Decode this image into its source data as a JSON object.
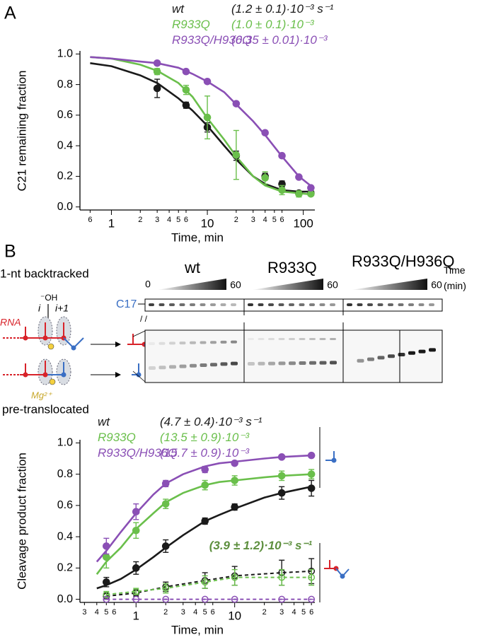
{
  "panels": {
    "a": "A",
    "b": "B"
  },
  "chart_data": [
    {
      "type": "line",
      "xscale": "log",
      "xlabel": "Time, min",
      "ylabel": "C21 remaining fraction",
      "xlim": [
        0.47,
        132
      ],
      "ylim": [
        -0.02,
        1.02
      ],
      "xticks": [
        {
          "value": 0.6,
          "label": "6"
        },
        1,
        2,
        3,
        4,
        5,
        6,
        10,
        {
          "value": 20,
          "label": "2"
        },
        {
          "value": 30,
          "label": "3"
        },
        {
          "value": 40,
          "label": "4"
        },
        {
          "value": 50,
          "label": "5"
        },
        {
          "value": 60,
          "label": "6"
        },
        100
      ],
      "yticks": [
        {
          "value": 0,
          "label": "0.0"
        },
        0.2,
        0.4,
        0.6,
        0.8,
        {
          "value": 1,
          "label": "1.0"
        }
      ],
      "x": [
        3,
        6,
        10,
        20,
        40,
        60,
        90,
        120
      ],
      "series": [
        {
          "name": "wt",
          "color": "#1a1a1a",
          "rate": "(1.2 ± 0.1)·10⁻³ s⁻¹",
          "values": [
            0.775,
            0.665,
            0.52,
            0.335,
            0.2,
            0.15,
            0.09,
            0.09
          ],
          "errors": [
            0.06,
            0.02,
            0.03,
            0.03,
            0.02,
            0.02,
            0.01,
            0.01
          ]
        },
        {
          "name": "R933Q",
          "color": "#6abf4b",
          "rate": "(1.0 ± 0.1)·10⁻³",
          "values": [
            0.885,
            0.765,
            0.585,
            0.34,
            0.19,
            0.11,
            0.085,
            0.085
          ],
          "errors": [
            0.02,
            0.03,
            0.14,
            0.16,
            0.04,
            0.03,
            0.02,
            0.01
          ]
        },
        {
          "name": "R933Q/H936Q",
          "color": "#8a4fb5",
          "rate": "(0.35 ± 0.01)·10⁻³",
          "values": [
            0.94,
            0.885,
            0.82,
            0.675,
            0.485,
            0.335,
            0.195,
            0.125
          ],
          "errors": [
            0.01,
            0.01,
            0.01,
            0.01,
            0.01,
            0.01,
            0.01,
            0.01
          ]
        }
      ],
      "fits": [
        {
          "color": "#1a1a1a",
          "x": [
            0.6,
            1,
            2,
            3,
            5,
            7,
            10,
            15,
            20,
            30,
            40,
            60,
            90,
            130
          ],
          "values": [
            0.94,
            0.92,
            0.86,
            0.81,
            0.71,
            0.63,
            0.53,
            0.4,
            0.31,
            0.2,
            0.15,
            0.11,
            0.1,
            0.1
          ]
        },
        {
          "color": "#6abf4b",
          "x": [
            0.6,
            1,
            2,
            3,
            5,
            7,
            10,
            15,
            20,
            30,
            40,
            60,
            90,
            130
          ],
          "values": [
            0.98,
            0.97,
            0.93,
            0.89,
            0.81,
            0.72,
            0.58,
            0.44,
            0.33,
            0.2,
            0.14,
            0.1,
            0.09,
            0.08
          ]
        },
        {
          "color": "#8a4fb5",
          "x": [
            0.6,
            1,
            2,
            3,
            5,
            7,
            10,
            15,
            20,
            30,
            40,
            60,
            90,
            130
          ],
          "values": [
            0.98,
            0.97,
            0.95,
            0.94,
            0.91,
            0.87,
            0.82,
            0.75,
            0.67,
            0.56,
            0.47,
            0.33,
            0.2,
            0.12
          ]
        }
      ]
    },
    {
      "type": "line",
      "xscale": "log",
      "xlabel": "Time, min",
      "ylabel": "Cleavage product fraction",
      "xlim": [
        0.27,
        65
      ],
      "ylim": [
        -0.02,
        1.02
      ],
      "xticks": [
        {
          "value": 0.3,
          "label": "3"
        },
        {
          "value": 0.4,
          "label": "4"
        },
        {
          "value": 0.5,
          "label": "5"
        },
        {
          "value": 0.6,
          "label": "6"
        },
        1,
        2,
        3,
        4,
        5,
        6,
        10,
        {
          "value": 20,
          "label": "2"
        },
        {
          "value": 30,
          "label": "3"
        },
        {
          "value": 40,
          "label": "4"
        },
        {
          "value": 50,
          "label": "5"
        },
        {
          "value": 60,
          "label": "6"
        }
      ],
      "yticks": [
        {
          "value": 0,
          "label": "0.0"
        },
        0.2,
        0.4,
        0.6,
        0.8,
        {
          "value": 1,
          "label": "1.0"
        }
      ],
      "x": [
        0.5,
        1,
        2,
        5,
        10,
        30,
        60
      ],
      "series": [
        {
          "name": "wt",
          "color": "#1a1a1a",
          "rate": "(4.7 ± 0.4)·10⁻³ s⁻¹",
          "values": [
            0.11,
            0.2,
            0.34,
            0.5,
            0.59,
            0.68,
            0.71
          ],
          "errors": [
            0.03,
            0.04,
            0.04,
            0.02,
            0.02,
            0.04,
            0.05
          ]
        },
        {
          "name": "R933Q",
          "color": "#6abf4b",
          "rate": "(13.5 ± 0.9)·10⁻³",
          "values": [
            0.27,
            0.44,
            0.61,
            0.73,
            0.76,
            0.79,
            0.8
          ],
          "errors": [
            0.07,
            0.05,
            0.03,
            0.03,
            0.03,
            0.03,
            0.03
          ]
        },
        {
          "name": "R933Q/H936Q",
          "color": "#8a4fb5",
          "rate": "(15.7 ± 0.9)·10⁻³",
          "values": [
            0.34,
            0.56,
            0.74,
            0.83,
            0.87,
            0.91,
            0.92
          ],
          "errors": [
            0.05,
            0.05,
            0.02,
            0.02,
            0.01,
            0.01,
            0.01
          ]
        }
      ],
      "fits": [
        {
          "color": "#1a1a1a",
          "x": [
            0.4,
            0.5,
            0.7,
            1,
            1.5,
            2,
            3,
            5,
            7,
            10,
            20,
            30,
            60
          ],
          "values": [
            0.07,
            0.09,
            0.13,
            0.19,
            0.27,
            0.33,
            0.41,
            0.5,
            0.54,
            0.58,
            0.65,
            0.68,
            0.72
          ]
        },
        {
          "color": "#6abf4b",
          "x": [
            0.4,
            0.5,
            0.7,
            1,
            1.5,
            2,
            3,
            5,
            7,
            10,
            20,
            30,
            60
          ],
          "values": [
            0.16,
            0.24,
            0.33,
            0.45,
            0.55,
            0.62,
            0.68,
            0.73,
            0.75,
            0.76,
            0.78,
            0.79,
            0.8
          ]
        },
        {
          "color": "#8a4fb5",
          "x": [
            0.4,
            0.5,
            0.7,
            1,
            1.5,
            2,
            3,
            5,
            7,
            10,
            20,
            30,
            60
          ],
          "values": [
            0.24,
            0.31,
            0.43,
            0.55,
            0.67,
            0.74,
            0.8,
            0.85,
            0.87,
            0.88,
            0.9,
            0.91,
            0.92
          ]
        }
      ],
      "lower_series": [
        {
          "color": "#1a1a1a",
          "values": [
            0.02,
            0.04,
            0.08,
            0.12,
            0.15,
            0.17,
            0.18
          ],
          "errors": [
            0.02,
            0.02,
            0.03,
            0.05,
            0.06,
            0.08,
            0.08
          ]
        },
        {
          "color": "#6abf4b",
          "values": [
            0.03,
            0.05,
            0.07,
            0.11,
            0.14,
            0.14,
            0.14
          ],
          "errors": [
            0.02,
            0.02,
            0.03,
            0.04,
            0.05,
            0.05,
            0.05
          ]
        },
        {
          "color": "#8a4fb5",
          "values": [
            0,
            0,
            0,
            0,
            0,
            0,
            0
          ],
          "errors": [
            0,
            0,
            0,
            0,
            0,
            0,
            0
          ]
        }
      ],
      "lower_rate": "(3.9 ± 1.2)·10⁻³ s⁻¹",
      "lower_rate_color": "#5d8f3e"
    }
  ],
  "gel": {
    "lanes": [
      "wt",
      "R933Q",
      "R933Q/H936Q"
    ],
    "time_label": "Time (min)",
    "ramp_start": "0",
    "ramp_end": "60",
    "marker": "C17"
  },
  "diagram": {
    "backtracked": "1-nt backtracked",
    "oh": "⁻OH",
    "i": "i",
    "i_plus_1": "i+1",
    "rna": "RNA",
    "mg": "Mg²⁺",
    "pretranslocated": "pre-translocated"
  }
}
